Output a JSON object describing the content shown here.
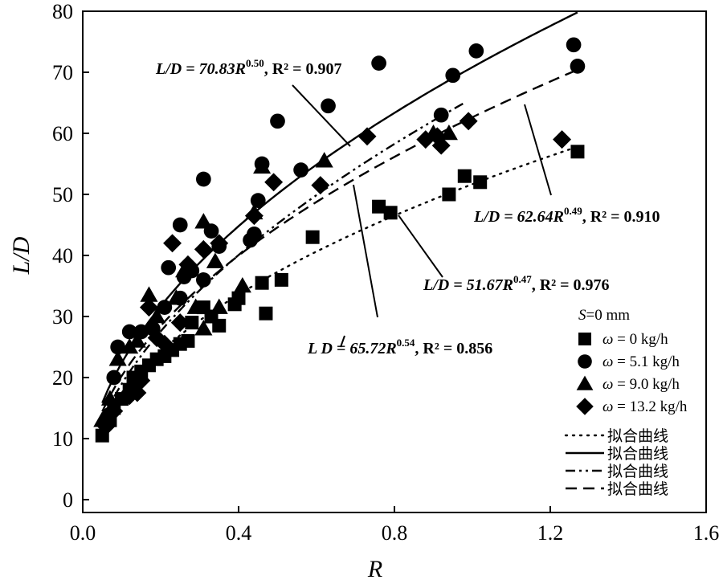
{
  "chart_data": {
    "type": "scatter",
    "xlabel": "R",
    "ylabel": "L/D",
    "xlim": [
      0.0,
      1.6
    ],
    "ylim": [
      0,
      80
    ],
    "xticks": [
      "0.0",
      "0.4",
      "0.8",
      "1.2",
      "1.6"
    ],
    "yticks": [
      "0",
      "10",
      "20",
      "30",
      "40",
      "50",
      "60",
      "70",
      "80"
    ],
    "series": [
      {
        "name": "ω = 0 kg/h",
        "marker": "square",
        "points": [
          [
            0.05,
            10.5
          ],
          [
            0.07,
            13
          ],
          [
            0.08,
            15
          ],
          [
            0.1,
            16.5
          ],
          [
            0.12,
            18
          ],
          [
            0.13,
            20
          ],
          [
            0.15,
            21
          ],
          [
            0.17,
            22
          ],
          [
            0.19,
            23
          ],
          [
            0.21,
            23.5
          ],
          [
            0.23,
            24.5
          ],
          [
            0.25,
            25.5
          ],
          [
            0.27,
            26
          ],
          [
            0.28,
            29
          ],
          [
            0.31,
            31.5
          ],
          [
            0.33,
            30
          ],
          [
            0.35,
            28.5
          ],
          [
            0.39,
            32
          ],
          [
            0.4,
            33
          ],
          [
            0.46,
            35.5
          ],
          [
            0.47,
            30.5
          ],
          [
            0.51,
            36
          ],
          [
            0.59,
            43
          ],
          [
            0.76,
            48
          ],
          [
            0.79,
            47
          ],
          [
            0.94,
            50
          ],
          [
            0.98,
            53
          ],
          [
            1.02,
            52
          ],
          [
            1.27,
            57
          ]
        ]
      },
      {
        "name": "ω = 5.1 kg/h",
        "marker": "circle",
        "points": [
          [
            0.07,
            14
          ],
          [
            0.08,
            20
          ],
          [
            0.09,
            25
          ],
          [
            0.12,
            27.5
          ],
          [
            0.15,
            27.5
          ],
          [
            0.18,
            28
          ],
          [
            0.21,
            31.5
          ],
          [
            0.22,
            38
          ],
          [
            0.25,
            33
          ],
          [
            0.25,
            45
          ],
          [
            0.26,
            36.5
          ],
          [
            0.28,
            37.5
          ],
          [
            0.31,
            52.5
          ],
          [
            0.31,
            36
          ],
          [
            0.33,
            44
          ],
          [
            0.35,
            41.5
          ],
          [
            0.43,
            42.5
          ],
          [
            0.44,
            43.5
          ],
          [
            0.45,
            49
          ],
          [
            0.46,
            55
          ],
          [
            0.5,
            62
          ],
          [
            0.56,
            54
          ],
          [
            0.63,
            64.5
          ],
          [
            0.76,
            71.5
          ],
          [
            0.92,
            63
          ],
          [
            0.95,
            69.5
          ],
          [
            1.01,
            73.5
          ],
          [
            1.26,
            74.5
          ],
          [
            1.27,
            71
          ]
        ]
      },
      {
        "name": "ω = 9.0 kg/h",
        "marker": "triangle",
        "points": [
          [
            0.05,
            13
          ],
          [
            0.07,
            16.5
          ],
          [
            0.09,
            23
          ],
          [
            0.12,
            25
          ],
          [
            0.14,
            26
          ],
          [
            0.17,
            33.5
          ],
          [
            0.19,
            30
          ],
          [
            0.22,
            24.5
          ],
          [
            0.24,
            33
          ],
          [
            0.26,
            37.5
          ],
          [
            0.29,
            31.5
          ],
          [
            0.31,
            28
          ],
          [
            0.31,
            45.5
          ],
          [
            0.34,
            39
          ],
          [
            0.35,
            31.5
          ],
          [
            0.41,
            35
          ],
          [
            0.44,
            47
          ],
          [
            0.46,
            54.5
          ],
          [
            0.62,
            55.5
          ],
          [
            0.9,
            60
          ],
          [
            0.94,
            60
          ]
        ]
      },
      {
        "name": "ω = 13.2 kg/h",
        "marker": "diamond",
        "points": [
          [
            0.06,
            12
          ],
          [
            0.08,
            14.5
          ],
          [
            0.12,
            17
          ],
          [
            0.14,
            17.5
          ],
          [
            0.15,
            19.5
          ],
          [
            0.17,
            31.5
          ],
          [
            0.19,
            26.5
          ],
          [
            0.21,
            25.5
          ],
          [
            0.23,
            42
          ],
          [
            0.25,
            29
          ],
          [
            0.27,
            38.5
          ],
          [
            0.31,
            41
          ],
          [
            0.35,
            42
          ],
          [
            0.44,
            46.5
          ],
          [
            0.49,
            52
          ],
          [
            0.61,
            51.5
          ],
          [
            0.73,
            59.5
          ],
          [
            0.88,
            59
          ],
          [
            0.91,
            59.5
          ],
          [
            0.92,
            58
          ],
          [
            0.99,
            62
          ],
          [
            1.23,
            59
          ]
        ]
      }
    ],
    "fits": [
      {
        "a": 51.67,
        "b": 0.47,
        "style": "dotted",
        "x_range": [
          0.05,
          1.28
        ]
      },
      {
        "a": 70.83,
        "b": 0.5,
        "style": "solid",
        "x_range": [
          0.05,
          1.27
        ]
      },
      {
        "a": 65.72,
        "b": 0.54,
        "style": "dashdotdot",
        "x_range": [
          0.05,
          0.98
        ]
      },
      {
        "a": 62.64,
        "b": 0.49,
        "style": "dashed",
        "x_range": [
          0.05,
          1.28
        ]
      }
    ],
    "annotations": [
      {
        "id": "eq1",
        "text_pre": "L/D = 70.83R",
        "exp": "0.50",
        "text_post": ", R² = 0.907"
      },
      {
        "id": "eq2",
        "text_pre": "L/D = 62.64R",
        "exp": "0.49",
        "text_post": ", R² = 0.910"
      },
      {
        "id": "eq3",
        "text_pre": "L/D = 51.67R",
        "exp": "0.47",
        "text_post": ", R² = 0.976"
      },
      {
        "id": "eq4",
        "text_pre": "L  D = 65.72R",
        "exp": "0.54",
        "text_post": ", R² = 0.856"
      }
    ],
    "legend": {
      "title": "S=0 mm",
      "location": "bottom-right",
      "fit_label": "拟合曲线"
    }
  }
}
